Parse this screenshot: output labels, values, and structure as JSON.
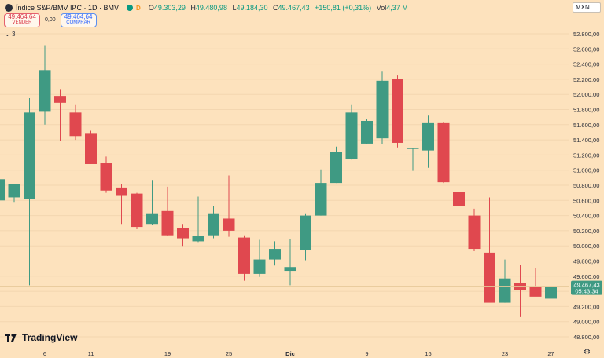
{
  "header": {
    "title": "Índice S&P/BMV IPC · 1D · BMV",
    "o_label": "O",
    "o": "49.303,29",
    "h_label": "H",
    "h": "49.480,98",
    "l_label": "L",
    "l": "49.184,30",
    "c_label": "C",
    "c": "49.467,43",
    "change": "+150,81 (+0,31%)",
    "vol_label": "Vol",
    "vol": "4,37 M",
    "badge_d": "D"
  },
  "trade": {
    "sell_price": "49.464,64",
    "sell_label": "VENDER",
    "spread": "0,00",
    "buy_price": "49.464,64",
    "buy_label": "COMPRAR"
  },
  "indicators_collapsed": "3",
  "currency": "MXN",
  "branding": "TradingView",
  "colors": {
    "up": "#3f9a83",
    "down": "#e0484f",
    "background": "#fde2bd",
    "last_price": "#3f9a83"
  },
  "chart_data": {
    "type": "candlestick",
    "y_range": [
      48800,
      52800
    ],
    "y_ticks": [
      48800,
      49000,
      49200,
      49400,
      49600,
      49800,
      50000,
      50200,
      50400,
      50600,
      50800,
      51000,
      51200,
      51400,
      51600,
      51800,
      52000,
      52200,
      52400,
      52600,
      52800
    ],
    "y_tick_labels": [
      "48.800,00",
      "49.000,00",
      "49.200,00",
      "49.400,00",
      "49.600,00",
      "49.800,00",
      "50.000,00",
      "50.200,00",
      "50.400,00",
      "50.600,00",
      "50.800,00",
      "51.000,00",
      "51.200,00",
      "51.400,00",
      "51.600,00",
      "51.800,00",
      "52.000,00",
      "52.200,00",
      "52.400,00",
      "52.600,00",
      "52.800,00"
    ],
    "x_labels": [
      "6",
      "11",
      "19",
      "25",
      "Dic",
      "9",
      "16",
      "23",
      "27"
    ],
    "x_label_positions": [
      3,
      6,
      11,
      15,
      19,
      24,
      28,
      33,
      36
    ],
    "last_price": "49.467,43",
    "countdown": "05:43:34",
    "candles": [
      {
        "o": 50600,
        "h": 50920,
        "l": 50560,
        "c": 50880
      },
      {
        "o": 50640,
        "h": 50820,
        "l": 50580,
        "c": 50820
      },
      {
        "o": 50620,
        "h": 51950,
        "l": 49480,
        "c": 51760
      },
      {
        "o": 51770,
        "h": 52650,
        "l": 51600,
        "c": 52320
      },
      {
        "o": 51980,
        "h": 52060,
        "l": 51380,
        "c": 51890
      },
      {
        "o": 51760,
        "h": 51860,
        "l": 51400,
        "c": 51450
      },
      {
        "o": 51480,
        "h": 51520,
        "l": 51080,
        "c": 51080
      },
      {
        "o": 51090,
        "h": 51180,
        "l": 50700,
        "c": 50730
      },
      {
        "o": 50770,
        "h": 50810,
        "l": 50290,
        "c": 50660
      },
      {
        "o": 50690,
        "h": 50700,
        "l": 50220,
        "c": 50250
      },
      {
        "o": 50290,
        "h": 50870,
        "l": 50280,
        "c": 50430
      },
      {
        "o": 50460,
        "h": 50780,
        "l": 50130,
        "c": 50140
      },
      {
        "o": 50230,
        "h": 50290,
        "l": 50000,
        "c": 50100
      },
      {
        "o": 50060,
        "h": 50650,
        "l": 50050,
        "c": 50130
      },
      {
        "o": 50140,
        "h": 50520,
        "l": 50100,
        "c": 50430
      },
      {
        "o": 50360,
        "h": 50930,
        "l": 50120,
        "c": 50200
      },
      {
        "o": 50110,
        "h": 50140,
        "l": 49540,
        "c": 49630
      },
      {
        "o": 49630,
        "h": 50080,
        "l": 49590,
        "c": 49820
      },
      {
        "o": 49820,
        "h": 50060,
        "l": 49740,
        "c": 49960
      },
      {
        "o": 49670,
        "h": 50090,
        "l": 49480,
        "c": 49720
      },
      {
        "o": 49950,
        "h": 50430,
        "l": 49810,
        "c": 50400
      },
      {
        "o": 50400,
        "h": 51010,
        "l": 50400,
        "c": 50830
      },
      {
        "o": 50830,
        "h": 51310,
        "l": 50830,
        "c": 51240
      },
      {
        "o": 51150,
        "h": 51860,
        "l": 51140,
        "c": 51760
      },
      {
        "o": 51350,
        "h": 51670,
        "l": 51340,
        "c": 51650
      },
      {
        "o": 51420,
        "h": 52300,
        "l": 51340,
        "c": 52180
      },
      {
        "o": 52200,
        "h": 52250,
        "l": 51300,
        "c": 51360
      },
      {
        "o": 51290,
        "h": 51290,
        "l": 50990,
        "c": 51290
      },
      {
        "o": 51260,
        "h": 51720,
        "l": 51030,
        "c": 51620
      },
      {
        "o": 51620,
        "h": 51640,
        "l": 50830,
        "c": 50840
      },
      {
        "o": 50710,
        "h": 50880,
        "l": 50360,
        "c": 50530
      },
      {
        "o": 50400,
        "h": 50490,
        "l": 49930,
        "c": 49960
      },
      {
        "o": 49910,
        "h": 50640,
        "l": 49270,
        "c": 49250
      },
      {
        "o": 49250,
        "h": 49820,
        "l": 49250,
        "c": 49570
      },
      {
        "o": 49510,
        "h": 49750,
        "l": 49060,
        "c": 49420
      },
      {
        "o": 49460,
        "h": 49710,
        "l": 49340,
        "c": 49330
      },
      {
        "o": 49303.29,
        "h": 49480.98,
        "l": 49184.3,
        "c": 49467.43
      }
    ]
  }
}
